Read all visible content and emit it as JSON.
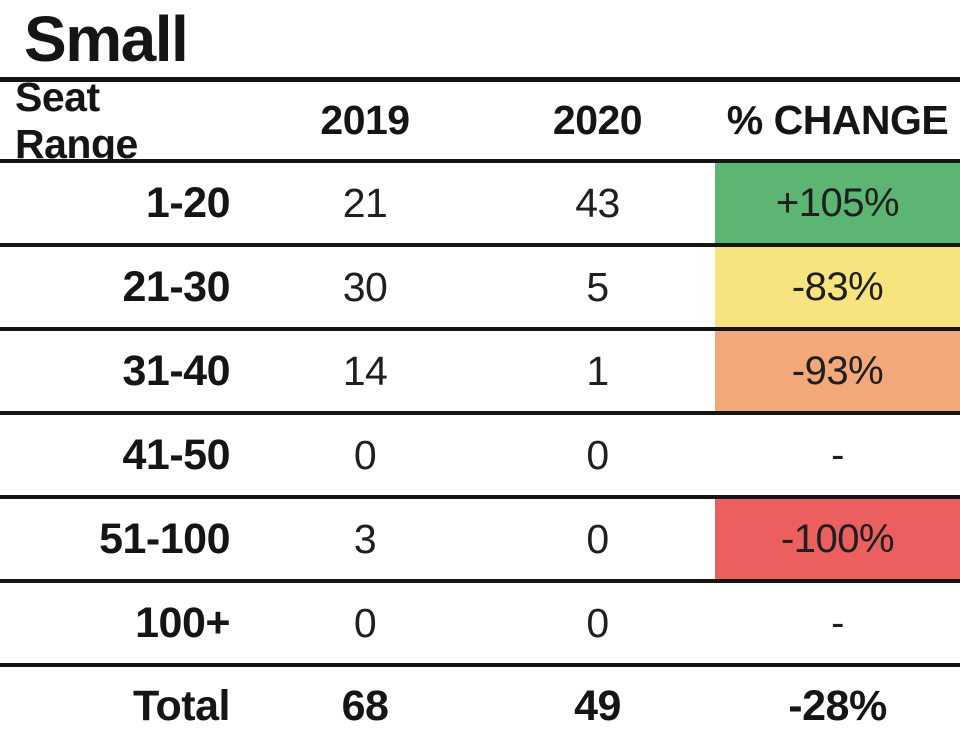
{
  "title": "Small",
  "colors": {
    "green": "#5cb573",
    "yellow": "#f8e47e",
    "orange": "#f2a878",
    "red": "#eb5f5e",
    "none": "transparent",
    "line": "#151515"
  },
  "table": {
    "columns": [
      "Seat Range",
      "2019",
      "2020",
      "% CHANGE"
    ],
    "rows": [
      {
        "seat_range": "1-20",
        "y2019": "21",
        "y2020": "43",
        "change": "+105%",
        "change_color": "green"
      },
      {
        "seat_range": "21-30",
        "y2019": "30",
        "y2020": "5",
        "change": "-83%",
        "change_color": "yellow"
      },
      {
        "seat_range": "31-40",
        "y2019": "14",
        "y2020": "1",
        "change": "-93%",
        "change_color": "orange"
      },
      {
        "seat_range": "41-50",
        "y2019": "0",
        "y2020": "0",
        "change": "-",
        "change_color": "none"
      },
      {
        "seat_range": "51-100",
        "y2019": "3",
        "y2020": "0",
        "change": "-100%",
        "change_color": "red"
      },
      {
        "seat_range": "100+",
        "y2019": "0",
        "y2020": "0",
        "change": "-",
        "change_color": "none"
      }
    ],
    "total": {
      "label": "Total",
      "y2019": "68",
      "y2020": "49",
      "change": "-28%",
      "change_color": "none"
    }
  },
  "chart_data": {
    "type": "table",
    "title": "Small",
    "columns": [
      "Seat Range",
      "2019",
      "2020",
      "% CHANGE"
    ],
    "rows": [
      [
        "1-20",
        21,
        43,
        "+105%"
      ],
      [
        "21-30",
        30,
        5,
        "-83%"
      ],
      [
        "31-40",
        14,
        1,
        "-93%"
      ],
      [
        "41-50",
        0,
        0,
        "-"
      ],
      [
        "51-100",
        3,
        0,
        "-100%"
      ],
      [
        "100+",
        0,
        0,
        "-"
      ],
      [
        "Total",
        68,
        49,
        "-28%"
      ]
    ],
    "change_cell_colors": [
      "green",
      "yellow",
      "orange",
      "none",
      "red",
      "none",
      "none"
    ],
    "layout": {
      "grid": "horizontal-lines-only",
      "change_column_highlighted": true
    }
  }
}
